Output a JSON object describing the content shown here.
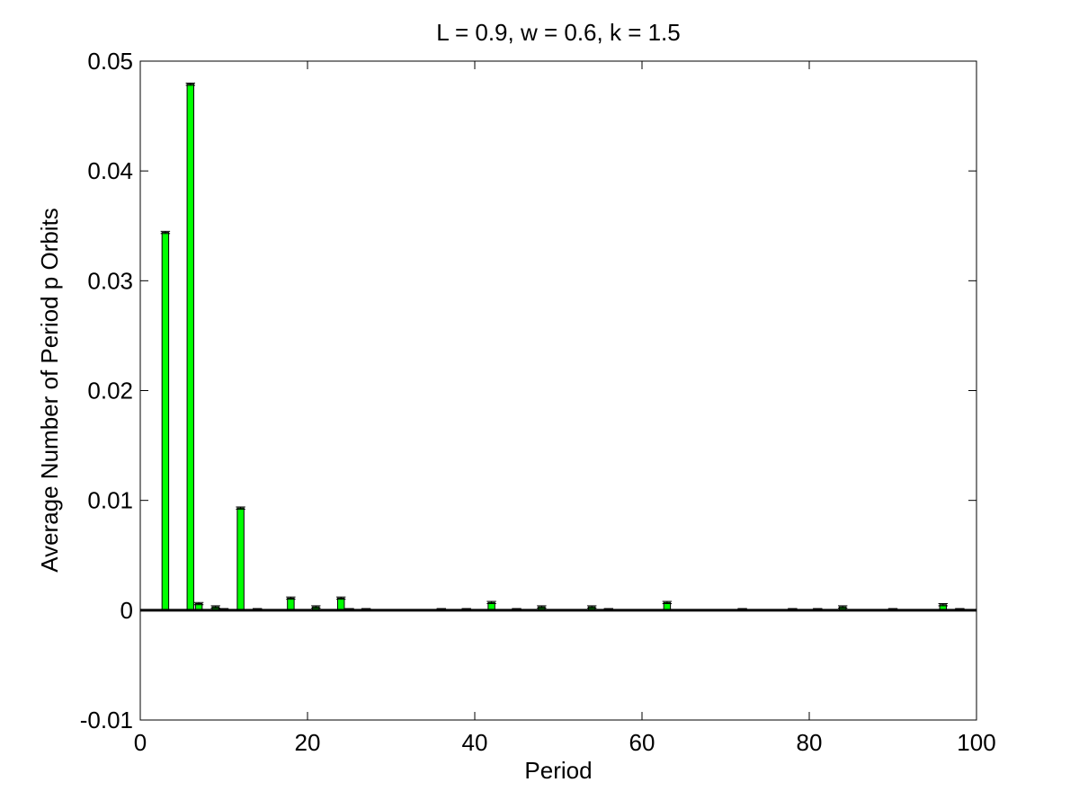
{
  "chart_data": {
    "type": "bar",
    "title": "L = 0.9, w = 0.6, k = 1.5",
    "xlabel": "Period",
    "ylabel": "Average Number of Period p Orbits",
    "xlim": [
      0,
      100
    ],
    "ylim": [
      -0.01,
      0.05
    ],
    "xticks": [
      "0",
      "20",
      "40",
      "60",
      "80",
      "100"
    ],
    "xtick_values": [
      0,
      20,
      40,
      60,
      80,
      100
    ],
    "yticks": [
      "-0.01",
      "0",
      "0.01",
      "0.02",
      "0.03",
      "0.04",
      "0.05"
    ],
    "ytick_values": [
      -0.01,
      0,
      0.01,
      0.02,
      0.03,
      0.04,
      0.05
    ],
    "grid": false,
    "bar_color": "#00ff00",
    "x": [
      3,
      6,
      7,
      9,
      10,
      12,
      14,
      18,
      21,
      24,
      25,
      27,
      36,
      39,
      42,
      45,
      48,
      54,
      56,
      63,
      72,
      78,
      81,
      84,
      90,
      96,
      98
    ],
    "values": [
      0.0344,
      0.0479,
      0.0006,
      0.0003,
      0.0001,
      0.0093,
      0.0001,
      0.0011,
      0.0003,
      0.0011,
      0.0001,
      0.0001,
      0.0001,
      0.0001,
      0.0007,
      0.0001,
      0.0003,
      0.0003,
      0.0001,
      0.0007,
      0.0001,
      0.0001,
      0.0001,
      0.0003,
      0.0001,
      0.0005,
      0.0001
    ],
    "errors": [
      0.0001,
      0.0001,
      0.0001,
      0.0001,
      5e-05,
      0.0001,
      5e-05,
      0.0001,
      0.0001,
      0.0001,
      5e-05,
      5e-05,
      5e-05,
      5e-05,
      0.0001,
      5e-05,
      0.0001,
      0.0001,
      5e-05,
      0.0001,
      5e-05,
      5e-05,
      5e-05,
      0.0001,
      5e-05,
      0.0001,
      5e-05
    ]
  }
}
